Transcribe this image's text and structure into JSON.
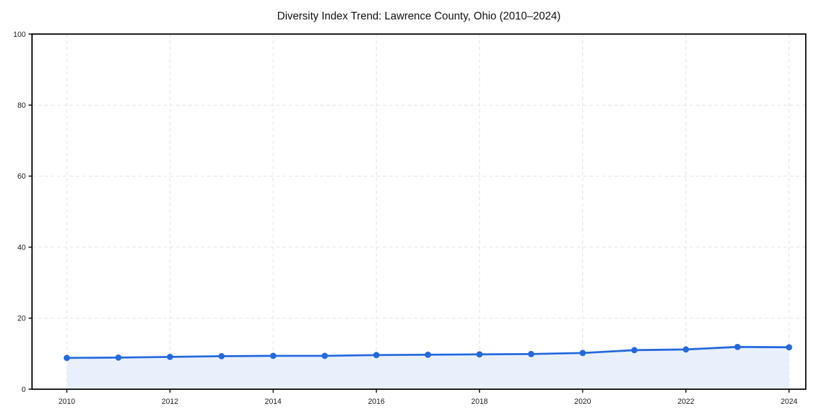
{
  "page": {
    "background": "#ffffff"
  },
  "chart_data": {
    "type": "area",
    "title": "Diversity Index Trend: Lawrence County, Ohio (2010–2024)",
    "x": [
      2010,
      2011,
      2012,
      2013,
      2014,
      2015,
      2016,
      2017,
      2018,
      2019,
      2020,
      2021,
      2022,
      2023,
      2024
    ],
    "values": [
      8.8,
      8.9,
      9.1,
      9.3,
      9.4,
      9.4,
      9.6,
      9.7,
      9.8,
      9.9,
      10.2,
      11.0,
      11.2,
      11.9,
      11.8
    ],
    "xlabel": "",
    "ylabel": "",
    "ylim": [
      0,
      100
    ],
    "yticks": [
      0,
      20,
      40,
      60,
      80,
      100
    ],
    "xticks": [
      2010,
      2012,
      2014,
      2016,
      2018,
      2020,
      2022,
      2024
    ],
    "grid": "dashed",
    "legend_position": "none",
    "colors": {
      "line": "#2368dd",
      "marker": "#2368dd",
      "fill": "#e9f0fc",
      "gridline": "#e2e2e2",
      "spine": "#000000",
      "tick": "#000000",
      "tick_label": "#1a1a1a",
      "title": "#111111"
    }
  }
}
